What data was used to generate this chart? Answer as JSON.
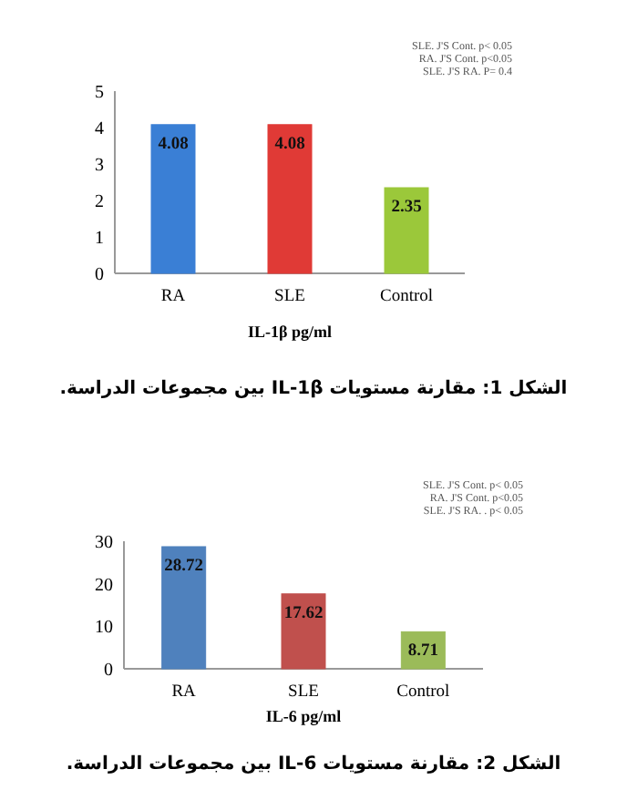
{
  "chart_data": [
    {
      "type": "bar",
      "categories": [
        "RA",
        "SLE",
        "Control"
      ],
      "values": [
        4.08,
        4.08,
        2.35
      ],
      "colors": [
        "#3a7fd5",
        "#e03a36",
        "#9bc83a"
      ],
      "data_labels": true,
      "ylim": [
        0,
        5
      ],
      "yticks": [
        0,
        1,
        2,
        3,
        4,
        5
      ],
      "xlabel": "IL-1β pg/ml",
      "annotations": [
        "SLE. J'S Cont. p< 0.05",
        "RA. J'S Cont. p<0.05",
        "SLE. J'S RA. P= 0.4",
        "الشكل 1: مقارنة مستويات IL-1β بين مجموعات الدراسة."
      ]
    },
    {
      "type": "bar",
      "categories": [
        "RA",
        "SLE",
        "Control"
      ],
      "values": [
        28.72,
        17.62,
        8.71
      ],
      "colors": [
        "#4f81bd",
        "#c0504d",
        "#9bbb59"
      ],
      "data_labels": true,
      "ylim": [
        0,
        30
      ],
      "yticks": [
        0,
        10,
        20,
        30
      ],
      "xlabel": "IL-6 pg/ml",
      "annotations": [
        "SLE. J'S Cont. p< 0.05",
        "RA. J'S Cont. p<0.05",
        "SLE. J'S RA. . p< 0.05",
        "الشكل 2: مقارنة مستويات IL-6 بين مجموعات الدراسة."
      ]
    }
  ]
}
